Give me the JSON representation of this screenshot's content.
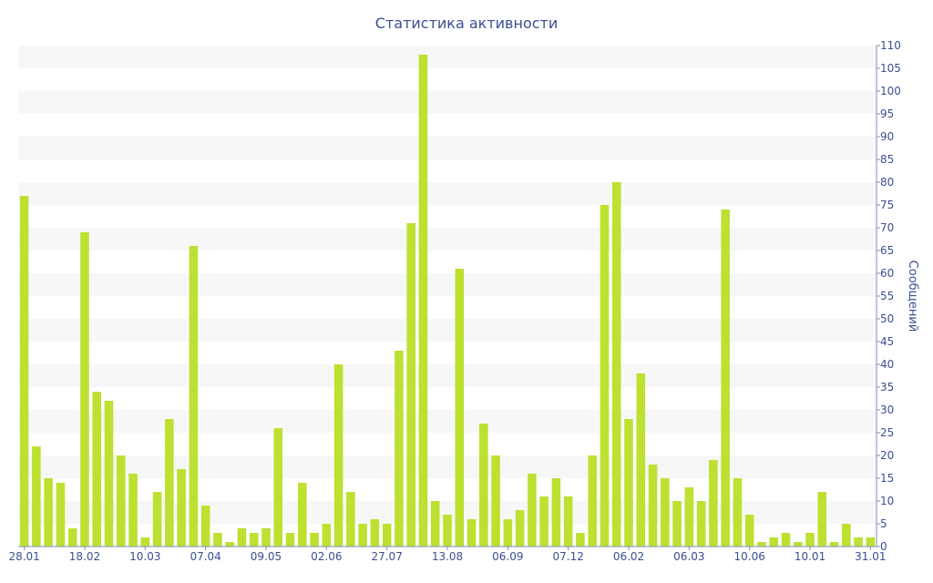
{
  "chart_data": {
    "type": "bar",
    "title": "Статистика активности",
    "xlabel": "",
    "ylabel": "Сообщений",
    "ylim": [
      0,
      110
    ],
    "y_ticks": [
      0,
      5,
      10,
      15,
      20,
      25,
      30,
      35,
      40,
      45,
      50,
      55,
      60,
      65,
      70,
      75,
      80,
      85,
      90,
      95,
      100,
      105,
      110
    ],
    "y_axis_side": "right",
    "grid": "alternating horizontal bands",
    "x_tick_labels": [
      {
        "index": 0,
        "label": "28.01"
      },
      {
        "index": 5,
        "label": "18.02"
      },
      {
        "index": 10,
        "label": "10.03"
      },
      {
        "index": 15,
        "label": "07.04"
      },
      {
        "index": 20,
        "label": "09.05"
      },
      {
        "index": 25,
        "label": "02.06"
      },
      {
        "index": 30,
        "label": "27.07"
      },
      {
        "index": 35,
        "label": "13.08"
      },
      {
        "index": 40,
        "label": "06.09"
      },
      {
        "index": 45,
        "label": "07.12"
      },
      {
        "index": 50,
        "label": "06.02"
      },
      {
        "index": 55,
        "label": "06.03"
      },
      {
        "index": 60,
        "label": "10.06"
      },
      {
        "index": 65,
        "label": "10.01"
      },
      {
        "index": 70,
        "label": "31.01"
      }
    ],
    "bar_color": "#bde031",
    "band_color": "#f7f7f7",
    "text_color": "#3b4f8f",
    "axis_color": "#7f8fb5",
    "values": [
      77,
      22,
      15,
      14,
      4,
      69,
      34,
      32,
      20,
      16,
      2,
      12,
      28,
      17,
      66,
      9,
      3,
      1,
      4,
      3,
      4,
      26,
      3,
      14,
      3,
      5,
      40,
      12,
      5,
      6,
      5,
      43,
      71,
      108,
      10,
      7,
      61,
      6,
      27,
      20,
      6,
      8,
      16,
      11,
      15,
      11,
      3,
      20,
      75,
      80,
      28,
      38,
      18,
      15,
      10,
      13,
      10,
      19,
      74,
      15,
      7,
      1,
      2,
      3,
      1,
      3,
      12,
      1,
      5,
      2,
      2
    ]
  }
}
